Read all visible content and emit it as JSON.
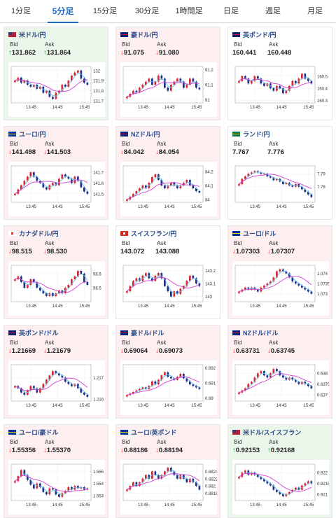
{
  "tabs": [
    {
      "label": "1分足",
      "active": false
    },
    {
      "label": "5分足",
      "active": true
    },
    {
      "label": "15分足",
      "active": false
    },
    {
      "label": "30分足",
      "active": false
    },
    {
      "label": "1時間足",
      "active": false
    },
    {
      "label": "日足",
      "active": false
    },
    {
      "label": "週足",
      "active": false
    },
    {
      "label": "月足",
      "active": false
    }
  ],
  "labels": {
    "bid": "Bid",
    "ask": "Ask"
  },
  "colors": {
    "down_bg": "#fdeff0",
    "up_bg": "#ebf6eb",
    "down_arrow": "#d8262f",
    "up_arrow": "#1f9a3a",
    "candle_up": "#d8262f",
    "candle_down": "#1b2f8f",
    "ma_short": "#6cc0e0",
    "ma_long": "#d23fd2"
  },
  "cards": [
    {
      "title": "米ドル/円",
      "flag": "us-flag-icon",
      "trend": "up",
      "bid": "131.862",
      "ask": "131.864",
      "bid_dir": "up",
      "ask_dir": "up",
      "yticks": [
        "132",
        "131.9",
        "131.8",
        "131.7"
      ],
      "ylim": [
        131.68,
        132.04
      ],
      "xticks": [
        "13:45",
        "14:45",
        "15:45"
      ],
      "closes": [
        131.9,
        131.93,
        131.88,
        131.9,
        131.86,
        131.84,
        131.86,
        131.82,
        131.84,
        131.78,
        131.8,
        131.74,
        131.72,
        131.78,
        131.8,
        131.86,
        131.84,
        131.9,
        131.95,
        131.98,
        132.0,
        131.92,
        131.88,
        131.86
      ]
    },
    {
      "title": "豪ドル/円",
      "flag": "au-flag-icon",
      "trend": "down",
      "bid": "91.075",
      "ask": "91.080",
      "bid_dir": "down",
      "ask_dir": "down",
      "yticks": [
        "91.2",
        "91.1",
        "91"
      ],
      "ylim": [
        90.98,
        91.22
      ],
      "xticks": [
        "13:45",
        "14:45",
        "15:45"
      ],
      "closes": [
        91.02,
        91.04,
        91.06,
        91.05,
        91.08,
        91.1,
        91.12,
        91.14,
        91.1,
        91.12,
        91.16,
        91.14,
        91.08,
        91.06,
        91.1,
        91.12,
        91.14,
        91.12,
        91.08,
        91.1,
        91.14,
        91.12,
        91.08,
        91.07
      ]
    },
    {
      "title": "英ポンド/円",
      "flag": "gb-flag-icon",
      "trend": "flat",
      "bid": "160.441",
      "ask": "160.448",
      "bid_dir": "none",
      "ask_dir": "none",
      "yticks": [
        "160.5",
        "160.4",
        "160.3"
      ],
      "ylim": [
        160.28,
        160.58
      ],
      "xticks": [
        "13:45",
        "14:45",
        "15:45"
      ],
      "closes": [
        160.46,
        160.5,
        160.48,
        160.44,
        160.46,
        160.5,
        160.48,
        160.44,
        160.42,
        160.44,
        160.4,
        160.38,
        160.42,
        160.4,
        160.36,
        160.38,
        160.42,
        160.46,
        160.44,
        160.48,
        160.52,
        160.48,
        160.46,
        160.44
      ]
    },
    {
      "title": "ユーロ/円",
      "flag": "eu-flag-icon",
      "trend": "down",
      "bid": "141.498",
      "ask": "141.503",
      "bid_dir": "down",
      "ask_dir": "down",
      "yticks": [
        "141.7",
        "141.6",
        "141.5"
      ],
      "ylim": [
        141.42,
        141.76
      ],
      "xticks": [
        "13:45",
        "14:45",
        "15:45"
      ],
      "closes": [
        141.5,
        141.54,
        141.58,
        141.62,
        141.66,
        141.7,
        141.66,
        141.62,
        141.6,
        141.56,
        141.54,
        141.58,
        141.6,
        141.58,
        141.64,
        141.68,
        141.66,
        141.64,
        141.6,
        141.66,
        141.62,
        141.56,
        141.52,
        141.5
      ]
    },
    {
      "title": "NZドル/円",
      "flag": "nz-flag-icon",
      "trend": "down",
      "bid": "84.042",
      "ask": "84.054",
      "bid_dir": "down",
      "ask_dir": "down",
      "yticks": [
        "84.2",
        "84.1",
        "84"
      ],
      "ylim": [
        83.98,
        84.24
      ],
      "xticks": [
        "13:45",
        "14:45",
        "15:45"
      ],
      "closes": [
        84.0,
        84.02,
        84.04,
        84.06,
        84.08,
        84.1,
        84.08,
        84.12,
        84.16,
        84.18,
        84.14,
        84.1,
        84.08,
        84.1,
        84.12,
        84.1,
        84.08,
        84.1,
        84.12,
        84.14,
        84.1,
        84.08,
        84.06,
        84.05
      ]
    },
    {
      "title": "ランド/円",
      "flag": "za-flag-icon",
      "trend": "flat",
      "bid": "7.767",
      "ask": "7.776",
      "bid_dir": "none",
      "ask_dir": "none",
      "yticks": [
        "7.79",
        "7.78"
      ],
      "ylim": [
        7.768,
        7.796
      ],
      "xticks": [
        "13:45",
        "14:45",
        "15:45"
      ],
      "closes": [
        7.782,
        7.786,
        7.788,
        7.79,
        7.791,
        7.792,
        7.791,
        7.79,
        7.79,
        7.788,
        7.787,
        7.785,
        7.786,
        7.784,
        7.782,
        7.783,
        7.781,
        7.78,
        7.782,
        7.78,
        7.778,
        7.776,
        7.774,
        7.772
      ]
    },
    {
      "title": "カナダドル/円",
      "flag": "ca-flag-icon",
      "trend": "down",
      "bid": "98.515",
      "ask": "98.530",
      "bid_dir": "down",
      "ask_dir": "down",
      "yticks": [
        "98.6",
        "98.5"
      ],
      "ylim": [
        98.4,
        98.66
      ],
      "xticks": [
        "13:45",
        "14:45",
        "15:45"
      ],
      "closes": [
        98.56,
        98.58,
        98.54,
        98.5,
        98.52,
        98.56,
        98.54,
        98.5,
        98.48,
        98.46,
        98.44,
        98.46,
        98.44,
        98.46,
        98.48,
        98.46,
        98.5,
        98.52,
        98.56,
        98.58,
        98.62,
        98.6,
        98.54,
        98.52
      ]
    },
    {
      "title": "スイスフラン/円",
      "flag": "ch-flag-icon",
      "trend": "flat",
      "bid": "143.072",
      "ask": "143.088",
      "bid_dir": "none",
      "ask_dir": "none",
      "yticks": [
        "143.2",
        "143.1",
        "143"
      ],
      "ylim": [
        142.96,
        143.24
      ],
      "xticks": [
        "13:45",
        "14:45",
        "15:45"
      ],
      "closes": [
        143.04,
        143.08,
        143.12,
        143.14,
        143.12,
        143.16,
        143.18,
        143.14,
        143.12,
        143.16,
        143.18,
        143.14,
        143.08,
        143.04,
        143.0,
        143.04,
        143.02,
        143.06,
        143.08,
        143.12,
        143.16,
        143.14,
        143.1,
        143.08
      ]
    },
    {
      "title": "ユーロ/ドル",
      "flag": "eu-us-flag-icon",
      "trend": "down",
      "bid": "1.07303",
      "ask": "1.07307",
      "bid_dir": "down",
      "ask_dir": "down",
      "yticks": [
        "1.074",
        "1.0735",
        "1.073"
      ],
      "ylim": [
        1.0726,
        1.0744
      ],
      "xticks": [
        "13:45",
        "14:45",
        "15:45"
      ],
      "closes": [
        1.0731,
        1.0732,
        1.0733,
        1.0732,
        1.0733,
        1.0732,
        1.0731,
        1.0733,
        1.0734,
        1.0735,
        1.0736,
        1.0738,
        1.0741,
        1.0742,
        1.0741,
        1.074,
        1.0738,
        1.0736,
        1.0735,
        1.0734,
        1.0733,
        1.0732,
        1.0731,
        1.073
      ]
    },
    {
      "title": "英ポンド/ドル",
      "flag": "gb-us-flag-icon",
      "trend": "down",
      "bid": "1.21669",
      "ask": "1.21679",
      "bid_dir": "down",
      "ask_dir": "down",
      "yticks": [
        "1.217",
        "1.216"
      ],
      "ylim": [
        1.2159,
        1.2176
      ],
      "xticks": [
        "13:45",
        "14:45",
        "15:45"
      ],
      "closes": [
        1.2166,
        1.2165,
        1.2163,
        1.2162,
        1.2164,
        1.2166,
        1.2165,
        1.2163,
        1.2165,
        1.2167,
        1.2169,
        1.2171,
        1.2173,
        1.2172,
        1.2171,
        1.217,
        1.2168,
        1.2167,
        1.2166,
        1.2167,
        1.2165,
        1.2163,
        1.2162,
        1.2161
      ]
    },
    {
      "title": "豪ドル/ドル",
      "flag": "au-us-flag-icon",
      "trend": "down",
      "bid": "0.69064",
      "ask": "0.69073",
      "bid_dir": "down",
      "ask_dir": "down",
      "yticks": [
        "0.692",
        "0.691",
        "0.69"
      ],
      "ylim": [
        0.6898,
        0.6922
      ],
      "xticks": [
        "13:45",
        "14:45",
        "15:45"
      ],
      "closes": [
        0.6902,
        0.6903,
        0.6904,
        0.6905,
        0.6906,
        0.6907,
        0.6906,
        0.6908,
        0.6911,
        0.6909,
        0.6912,
        0.6915,
        0.6917,
        0.6914,
        0.6913,
        0.6912,
        0.6914,
        0.6916,
        0.6913,
        0.6911,
        0.6909,
        0.6908,
        0.6907,
        0.6906
      ]
    },
    {
      "title": "NZドル/ドル",
      "flag": "nz-us-flag-icon",
      "trend": "down",
      "bid": "0.63731",
      "ask": "0.63745",
      "bid_dir": "down",
      "ask_dir": "down",
      "yticks": [
        "0.638",
        "0.6375",
        "0.637"
      ],
      "ylim": [
        0.6367,
        0.6384
      ],
      "xticks": [
        "13:45",
        "14:45",
        "15:45"
      ],
      "closes": [
        0.6371,
        0.6372,
        0.6373,
        0.6375,
        0.6376,
        0.6378,
        0.638,
        0.6381,
        0.6379,
        0.6378,
        0.638,
        0.6382,
        0.6381,
        0.6379,
        0.6378,
        0.6377,
        0.6378,
        0.6377,
        0.6376,
        0.6375,
        0.6376,
        0.6375,
        0.6374,
        0.6373
      ]
    },
    {
      "title": "ユーロ/豪ドル",
      "flag": "eu-au-flag-icon",
      "trend": "down",
      "bid": "1.55356",
      "ask": "1.55370",
      "bid_dir": "down",
      "ask_dir": "down",
      "yticks": [
        "1.555",
        "1.554",
        "1.553"
      ],
      "ylim": [
        1.5526,
        1.5556
      ],
      "xticks": [
        "13:45",
        "14:45",
        "15:45"
      ],
      "closes": [
        1.5542,
        1.5546,
        1.5551,
        1.5547,
        1.5543,
        1.5539,
        1.5536,
        1.554,
        1.5537,
        1.5533,
        1.5531,
        1.5536,
        1.5535,
        1.5531,
        1.5529,
        1.5532,
        1.5534,
        1.5537,
        1.5535,
        1.5538,
        1.5536,
        1.5537,
        1.5535,
        1.5536
      ]
    },
    {
      "title": "ユーロ/英ポンド",
      "flag": "eu-gb-flag-icon",
      "trend": "down",
      "bid": "0.88186",
      "ask": "0.88194",
      "bid_dir": "down",
      "ask_dir": "down",
      "yticks": [
        "0.8824",
        "0.8822",
        "0.882",
        "0.8818"
      ],
      "ylim": [
        0.8816,
        0.8826
      ],
      "xticks": [
        "13:45",
        "14:45",
        "15:45"
      ],
      "closes": [
        0.8819,
        0.882,
        0.8821,
        0.882,
        0.8821,
        0.8822,
        0.8823,
        0.8822,
        0.8824,
        0.8823,
        0.8822,
        0.8823,
        0.8824,
        0.8825,
        0.8824,
        0.8823,
        0.8822,
        0.8823,
        0.8822,
        0.8821,
        0.8822,
        0.8821,
        0.882,
        0.8819
      ]
    },
    {
      "title": "米ドル/スイスフラン",
      "flag": "us-ch-flag-icon",
      "trend": "up",
      "bid": "0.92153",
      "ask": "0.92168",
      "bid_dir": "up",
      "ask_dir": "up",
      "yticks": [
        "0.922",
        "0.9215",
        "0.921"
      ],
      "ylim": [
        0.9207,
        0.9224
      ],
      "xticks": [
        "13:45",
        "14:45",
        "15:45"
      ],
      "closes": [
        0.9218,
        0.922,
        0.9221,
        0.9219,
        0.922,
        0.9219,
        0.9218,
        0.9217,
        0.9216,
        0.9215,
        0.9214,
        0.9212,
        0.9211,
        0.921,
        0.9209,
        0.921,
        0.9211,
        0.9212,
        0.9213,
        0.9212,
        0.9214,
        0.9215,
        0.9216,
        0.9215
      ]
    }
  ]
}
